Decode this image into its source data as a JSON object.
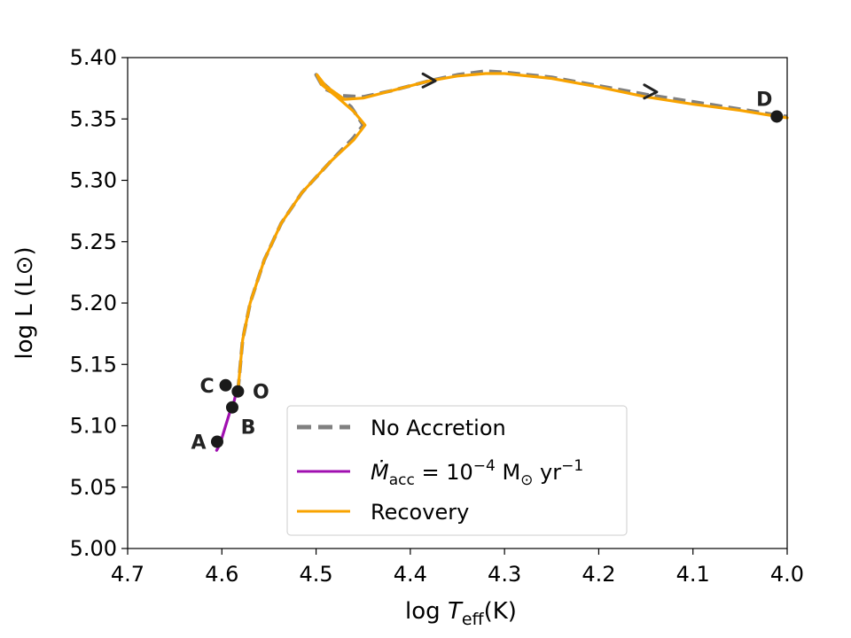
{
  "chart_data": {
    "type": "line",
    "title": "",
    "xlabel_prefix": "log ",
    "xlabel_var": "T",
    "xlabel_sub": "eff",
    "xlabel_suffix": "(K)",
    "ylabel": "log L (L⊙)",
    "xlim": [
      4.7,
      4.0
    ],
    "ylim": [
      5.0,
      5.4
    ],
    "x_reversed": true,
    "x_ticks": [
      "4.7",
      "4.6",
      "4.5",
      "4.4",
      "4.3",
      "4.2",
      "4.1",
      "4.0"
    ],
    "y_ticks": [
      "5.00",
      "5.05",
      "5.10",
      "5.15",
      "5.20",
      "5.25",
      "5.30",
      "5.35",
      "5.40"
    ],
    "grid": false,
    "legend_placement": "lower center",
    "legend": {
      "no_accretion": "No Accretion",
      "accretion_var": "Ṁ",
      "accretion_sub": "acc",
      "accretion_eq": " = 10",
      "accretion_exp": "−4",
      "accretion_unit1": " M",
      "accretion_sun": "⊙",
      "accretion_unit2": " yr",
      "accretion_exp2": "−1",
      "recovery": "Recovery"
    },
    "series": [
      {
        "name": "No Accretion",
        "color": "#808080",
        "style": "dashed",
        "points": [
          [
            4.583,
            5.128
          ],
          [
            4.578,
            5.17
          ],
          [
            4.57,
            5.2
          ],
          [
            4.555,
            5.235
          ],
          [
            4.537,
            5.265
          ],
          [
            4.515,
            5.29
          ],
          [
            4.485,
            5.315
          ],
          [
            4.46,
            5.335
          ],
          [
            4.45,
            5.345
          ],
          [
            4.463,
            5.36
          ],
          [
            4.482,
            5.372
          ],
          [
            4.497,
            5.382
          ],
          [
            4.5,
            5.386
          ],
          [
            4.492,
            5.375
          ],
          [
            4.475,
            5.369
          ],
          [
            4.45,
            5.368
          ],
          [
            4.42,
            5.373
          ],
          [
            4.38,
            5.381
          ],
          [
            4.35,
            5.386
          ],
          [
            4.32,
            5.389
          ],
          [
            4.3,
            5.388
          ],
          [
            4.25,
            5.384
          ],
          [
            4.2,
            5.377
          ],
          [
            4.15,
            5.37
          ],
          [
            4.1,
            5.364
          ],
          [
            4.05,
            5.358
          ],
          [
            4.01,
            5.353
          ],
          [
            4.0,
            5.352
          ]
        ]
      },
      {
        "name": "Ṁacc = 10−4 M⊙ yr−1",
        "color": "#a010b0",
        "style": "solid",
        "points": [
          [
            4.6055,
            5.08
          ],
          [
            4.604,
            5.082
          ],
          [
            4.6,
            5.09
          ],
          [
            4.596,
            5.1
          ],
          [
            4.592,
            5.11
          ],
          [
            4.589,
            5.115
          ],
          [
            4.587,
            5.12
          ],
          [
            4.584,
            5.13
          ]
        ]
      },
      {
        "name": "Recovery",
        "color": "#f8a300",
        "style": "solid",
        "points": [
          [
            4.583,
            5.128
          ],
          [
            4.578,
            5.17
          ],
          [
            4.57,
            5.2
          ],
          [
            4.555,
            5.235
          ],
          [
            4.537,
            5.265
          ],
          [
            4.515,
            5.29
          ],
          [
            4.485,
            5.315
          ],
          [
            4.46,
            5.333
          ],
          [
            4.448,
            5.345
          ],
          [
            4.46,
            5.356
          ],
          [
            4.478,
            5.368
          ],
          [
            4.494,
            5.378
          ],
          [
            4.499,
            5.386
          ],
          [
            4.49,
            5.377
          ],
          [
            4.47,
            5.366
          ],
          [
            4.45,
            5.367
          ],
          [
            4.42,
            5.373
          ],
          [
            4.38,
            5.381
          ],
          [
            4.35,
            5.385
          ],
          [
            4.32,
            5.387
          ],
          [
            4.3,
            5.387
          ],
          [
            4.25,
            5.383
          ],
          [
            4.2,
            5.376
          ],
          [
            4.15,
            5.368
          ],
          [
            4.1,
            5.362
          ],
          [
            4.05,
            5.357
          ],
          [
            4.01,
            5.352
          ],
          [
            4.0,
            5.351
          ]
        ]
      }
    ],
    "arrows": [
      [
        4.38,
        5.381
      ],
      [
        4.145,
        5.372
      ]
    ],
    "points": [
      {
        "label": "A",
        "x": 4.605,
        "y": 5.087,
        "anchor": "left"
      },
      {
        "label": "B",
        "x": 4.589,
        "y": 5.115,
        "anchor": "below-right"
      },
      {
        "label": "C",
        "x": 4.596,
        "y": 5.133,
        "anchor": "left"
      },
      {
        "label": "O",
        "x": 4.583,
        "y": 5.128,
        "anchor": "right"
      },
      {
        "label": "D",
        "x": 4.011,
        "y": 5.352,
        "anchor": "above-left"
      }
    ]
  }
}
